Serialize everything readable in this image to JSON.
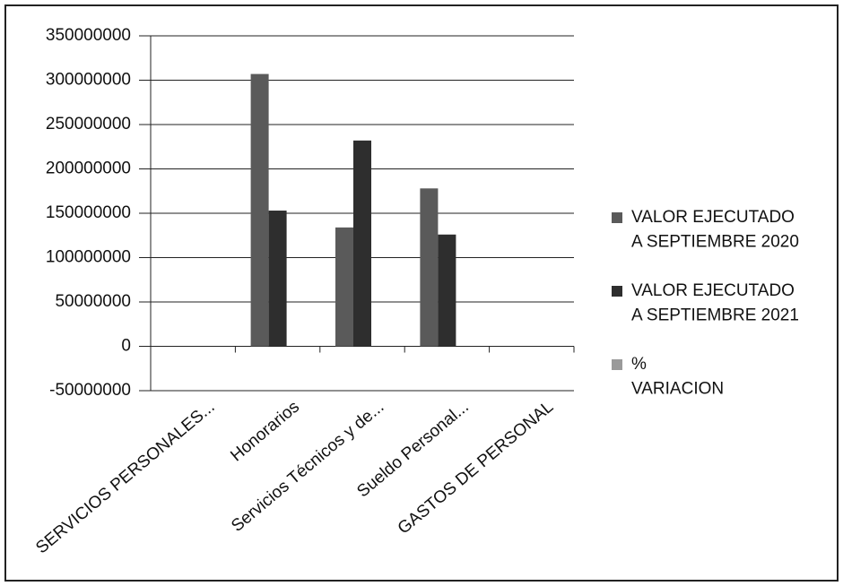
{
  "chart_data": {
    "type": "bar",
    "categories": [
      "SERVICIOS PERSONALES...",
      "Honorarios",
      "Servicios Técnicos y de...",
      "Sueldo Personal...",
      "GASTOS DE PERSONAL"
    ],
    "series": [
      {
        "name": "VALOR EJECUTADO\nA SEPTIEMBRE  2020",
        "color": "#5a5a5a",
        "values": [
          null,
          307000000,
          134000000,
          178000000,
          null
        ]
      },
      {
        "name": "VALOR EJECUTADO\nA SEPTIEMBRE  2021",
        "color": "#2e2e2e",
        "values": [
          null,
          153000000,
          232000000,
          126000000,
          null
        ]
      },
      {
        "name": "%\nVARIACION",
        "color": "#9a9a9a",
        "values": [
          null,
          null,
          null,
          null,
          null
        ]
      }
    ],
    "ylim": [
      -50000000,
      350000000
    ],
    "yticks": [
      -50000000,
      0,
      50000000,
      100000000,
      150000000,
      200000000,
      250000000,
      300000000,
      350000000
    ],
    "grid": true,
    "legend": "right"
  }
}
